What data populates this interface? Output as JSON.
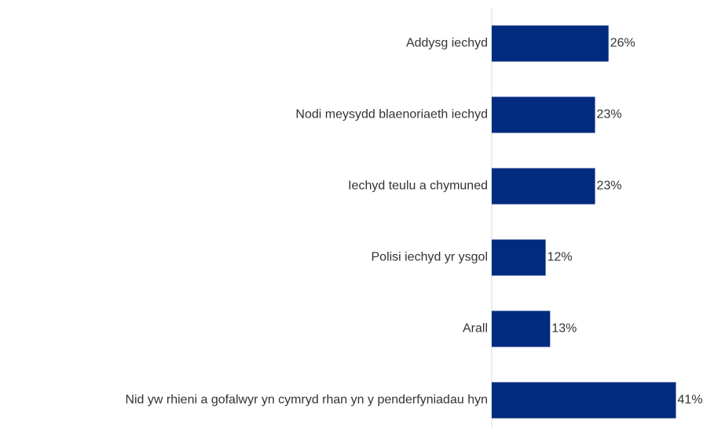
{
  "chart_data": {
    "type": "bar",
    "orientation": "horizontal",
    "categories": [
      "Addysg iechyd",
      "Nodi meysydd blaenoriaeth iechyd",
      "Iechyd teulu a chymuned",
      "Polisi iechyd yr ysgol",
      "Arall",
      "Nid yw rhieni a gofalwyr yn cymryd rhan yn y penderfyniadau hyn"
    ],
    "values": [
      26,
      23,
      23,
      12,
      13,
      41
    ],
    "value_labels": [
      "26%",
      "23%",
      "23%",
      "12%",
      "13%",
      "41%"
    ],
    "color": "#002b7f"
  }
}
